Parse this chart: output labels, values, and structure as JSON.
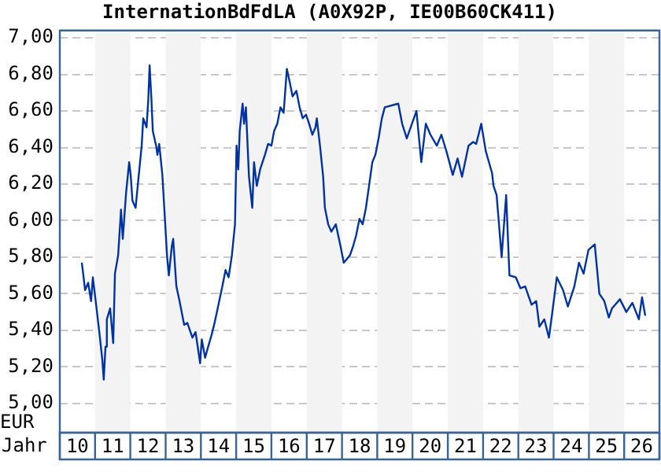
{
  "chart_data": {
    "type": "line",
    "title": "InternationBdFdLA (A0X92P, IE00B60CK411)",
    "xlabel": "Jahr",
    "ylabel": "EUR",
    "x": [
      "2010-08-17",
      "2010-09-20",
      "2010-10-22",
      "2010-11-21",
      "2010-12-09",
      "2011-01-12",
      "2011-02-14",
      "2011-03-17",
      "2011-04-01",
      "2011-04-19",
      "2011-05-03",
      "2011-06-06",
      "2011-07-08",
      "2011-07-26",
      "2011-08-28",
      "2011-09-27",
      "2011-10-15",
      "2011-11-18",
      "2011-12-20",
      "2012-01-05",
      "2012-01-23",
      "2012-02-25",
      "2012-03-27",
      "2012-04-28",
      "2012-05-14",
      "2012-06-17",
      "2012-07-05",
      "2012-07-19",
      "2012-08-07",
      "2012-08-21",
      "2012-09-24",
      "2012-10-08",
      "2012-10-26",
      "2012-11-28",
      "2013-01-01",
      "2013-01-15",
      "2013-02-03",
      "2013-03-06",
      "2013-03-20",
      "2013-04-22",
      "2013-05-25",
      "2013-07-12",
      "2013-08-14",
      "2013-10-05",
      "2013-11-07",
      "2013-12-24",
      "2014-01-10",
      "2014-02-14",
      "2014-03-17",
      "2014-04-19",
      "2014-05-18",
      "2014-06-20",
      "2014-08-11",
      "2014-09-13",
      "2014-10-15",
      "2014-11-18",
      "2014-12-20",
      "2015-01-05",
      "2015-01-23",
      "2015-02-07",
      "2015-03-09",
      "2015-03-24",
      "2015-04-12",
      "2015-05-14",
      "2015-06-17",
      "2015-07-05",
      "2015-08-03",
      "2015-09-06",
      "2015-10-26",
      "2015-11-28",
      "2016-01-01",
      "2016-01-29",
      "2016-03-02",
      "2016-04-04",
      "2016-05-07",
      "2016-06-09",
      "2016-07-12",
      "2016-08-07",
      "2016-09-16",
      "2016-10-19",
      "2016-11-21",
      "2016-12-24",
      "2017-01-26",
      "2017-02-28",
      "2017-04-01",
      "2017-04-15",
      "2017-05-18",
      "2017-06-20",
      "2017-07-08",
      "2017-08-11",
      "2017-09-13",
      "2017-10-29",
      "2017-12-17",
      "2018-01-19",
      "2018-03-24",
      "2018-04-26",
      "2018-05-28",
      "2018-07-01",
      "2018-08-03",
      "2018-09-06",
      "2018-10-08",
      "2018-11-11",
      "2018-12-13",
      "2019-01-15",
      "2019-02-18",
      "2019-03-20",
      "2019-08-07",
      "2019-09-16",
      "2019-11-03",
      "2020-02-11",
      "2020-04-01",
      "2020-05-18",
      "2020-07-05",
      "2020-09-09",
      "2020-10-26",
      "2020-12-17",
      "2021-02-21",
      "2021-04-12",
      "2021-05-28",
      "2021-08-03",
      "2021-09-20",
      "2021-10-22",
      "2021-12-13",
      "2022-01-29",
      "2022-04-04",
      "2022-04-19",
      "2022-05-21",
      "2022-06-24",
      "2022-07-12",
      "2022-08-28",
      "2022-10-01",
      "2022-12-06",
      "2023-01-23",
      "2023-03-13",
      "2023-05-18",
      "2023-07-05",
      "2023-08-07",
      "2023-09-27",
      "2023-11-14",
      "2023-12-17",
      "2024-02-03",
      "2024-04-08",
      "2024-05-28",
      "2024-08-03",
      "2024-09-20",
      "2024-11-07",
      "2024-12-27",
      "2025-03-02",
      "2025-04-19",
      "2025-06-09",
      "2025-07-26",
      "2025-08-28",
      "2025-11-18",
      "2026-01-23",
      "2026-03-27",
      "2026-06-02",
      "2026-07-05",
      "2026-08-07"
    ],
    "series": [
      {
        "color": "#0033a0",
        "values": [
          5.77,
          5.62,
          5.66,
          5.56,
          5.69,
          5.54,
          5.39,
          5.24,
          5.13,
          5.31,
          5.46,
          5.52,
          5.33,
          5.71,
          5.81,
          6.06,
          5.9,
          6.15,
          6.32,
          6.25,
          6.11,
          6.07,
          6.24,
          6.41,
          6.56,
          6.51,
          6.66,
          6.85,
          6.66,
          6.49,
          6.41,
          6.36,
          6.42,
          6.25,
          5.94,
          5.81,
          5.7,
          5.86,
          5.9,
          5.64,
          5.56,
          5.43,
          5.44,
          5.36,
          5.39,
          5.22,
          5.35,
          5.25,
          5.31,
          5.37,
          5.43,
          5.51,
          5.64,
          5.73,
          5.69,
          5.81,
          5.98,
          6.41,
          6.28,
          6.49,
          6.64,
          6.53,
          6.62,
          6.24,
          6.07,
          6.32,
          6.19,
          6.28,
          6.36,
          6.42,
          6.41,
          6.49,
          6.53,
          6.62,
          6.59,
          6.83,
          6.75,
          6.68,
          6.71,
          6.62,
          6.56,
          6.58,
          6.53,
          6.47,
          6.51,
          6.56,
          6.41,
          6.24,
          6.07,
          5.98,
          5.94,
          5.98,
          5.86,
          5.77,
          5.81,
          5.86,
          5.92,
          6.01,
          5.98,
          6.07,
          6.19,
          6.32,
          6.36,
          6.45,
          6.56,
          6.62,
          6.64,
          6.53,
          6.45,
          6.6,
          6.32,
          6.53,
          6.47,
          6.41,
          6.47,
          6.38,
          6.25,
          6.34,
          6.24,
          6.41,
          6.43,
          6.42,
          6.53,
          6.38,
          6.26,
          6.19,
          6.14,
          5.92,
          5.8,
          6.14,
          5.7,
          5.69,
          5.63,
          5.64,
          5.54,
          5.56,
          5.42,
          5.46,
          5.36,
          5.49,
          5.69,
          5.62,
          5.53,
          5.64,
          5.77,
          5.71,
          5.84,
          5.87,
          5.6,
          5.56,
          5.47,
          5.52,
          5.57,
          5.5,
          5.55,
          5.46,
          5.58,
          5.48
        ]
      }
    ],
    "xlim": [
      "2010-01-01",
      "2027-01-01"
    ],
    "xticks": [
      {
        "value": "2010-07-02",
        "label": "10"
      },
      {
        "value": "2011-07-02",
        "label": "11"
      },
      {
        "value": "2012-07-02",
        "label": "12"
      },
      {
        "value": "2013-07-02",
        "label": "13"
      },
      {
        "value": "2014-07-02",
        "label": "14"
      },
      {
        "value": "2015-07-02",
        "label": "15"
      },
      {
        "value": "2016-07-02",
        "label": "16"
      },
      {
        "value": "2017-07-02",
        "label": "17"
      },
      {
        "value": "2018-07-02",
        "label": "18"
      },
      {
        "value": "2019-07-02",
        "label": "19"
      },
      {
        "value": "2020-07-02",
        "label": "20"
      },
      {
        "value": "2021-07-02",
        "label": "21"
      },
      {
        "value": "2022-07-02",
        "label": "22"
      },
      {
        "value": "2023-07-02",
        "label": "23"
      },
      {
        "value": "2024-07-02",
        "label": "24"
      },
      {
        "value": "2025-07-02",
        "label": "25"
      },
      {
        "value": "2026-07-02",
        "label": "26"
      }
    ],
    "ylim": [
      4.84,
      7.04
    ],
    "yticks": [
      {
        "value": 5,
        "label": "5,00"
      },
      {
        "value": 5.2,
        "label": "5,20"
      },
      {
        "value": 5.4,
        "label": "5,40"
      },
      {
        "value": 5.6,
        "label": "5,60"
      },
      {
        "value": 5.8,
        "label": "5,80"
      },
      {
        "value": 6,
        "label": "6,00"
      },
      {
        "value": 6.2,
        "label": "6,20"
      },
      {
        "value": 6.4,
        "label": "6,40"
      },
      {
        "value": 6.6,
        "label": "6,60"
      },
      {
        "value": 6.8,
        "label": "6,80"
      },
      {
        "value": 7,
        "label": "7,00"
      }
    ],
    "bands": [
      {
        "axis": "x",
        "from": "2011-01-01",
        "to": "2012-01-01",
        "color": "#f3f3f3"
      },
      {
        "axis": "x",
        "from": "2013-01-01",
        "to": "2014-01-01",
        "color": "#f3f3f3"
      },
      {
        "axis": "x",
        "from": "2015-01-01",
        "to": "2016-01-01",
        "color": "#f3f3f3"
      },
      {
        "axis": "x",
        "from": "2017-01-01",
        "to": "2018-01-01",
        "color": "#f3f3f3"
      },
      {
        "axis": "x",
        "from": "2019-01-01",
        "to": "2020-01-01",
        "color": "#f3f3f3"
      },
      {
        "axis": "x",
        "from": "2021-01-01",
        "to": "2022-01-01",
        "color": "#f3f3f3"
      },
      {
        "axis": "x",
        "from": "2023-01-01",
        "to": "2024-01-01",
        "color": "#f3f3f3"
      },
      {
        "axis": "x",
        "from": "2025-01-01",
        "to": "2026-01-01",
        "color": "#f3f3f3"
      }
    ],
    "grid": "y",
    "marker": "none",
    "line_style": "solid",
    "legend": false
  }
}
